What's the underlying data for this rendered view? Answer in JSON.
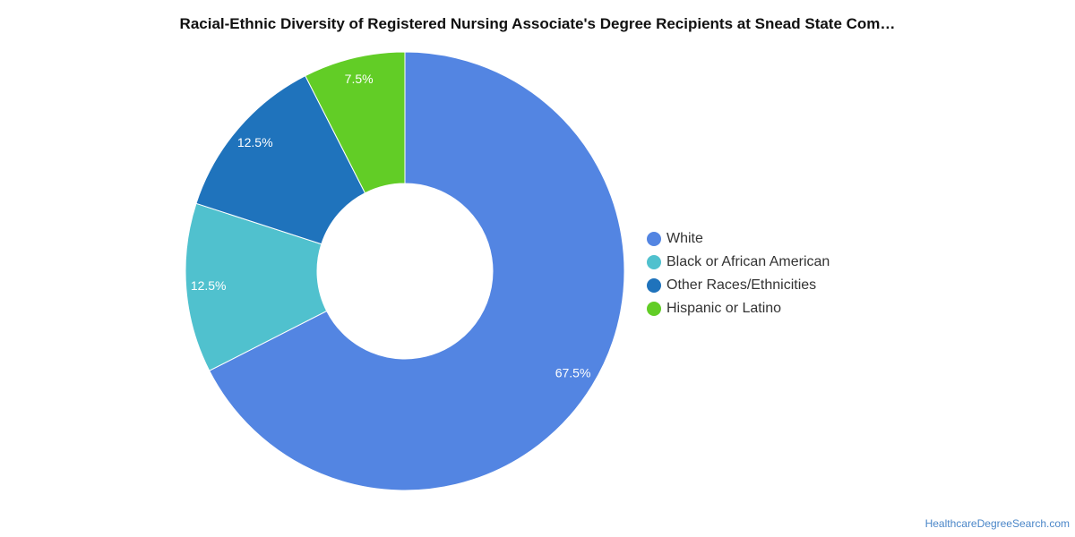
{
  "chart_data": {
    "type": "pie",
    "title": "Racial-Ethnic Diversity of Registered Nursing Associate's Degree Recipients at Snead State Com…",
    "slices": [
      {
        "name": "White",
        "value": 67.5,
        "label": "67.5%",
        "color": "#5385e2"
      },
      {
        "name": "Black or African American",
        "value": 12.5,
        "label": "12.5%",
        "color": "#50c1ce"
      },
      {
        "name": "Other Races/Ethnicities",
        "value": 12.5,
        "label": "12.5%",
        "color": "#1f73bc"
      },
      {
        "name": "Hispanic or Latino",
        "value": 7.5,
        "label": "7.5%",
        "color": "#62cd26"
      }
    ],
    "legend_position": "right"
  },
  "footer": {
    "source": "HealthcareDegreeSearch.com"
  }
}
